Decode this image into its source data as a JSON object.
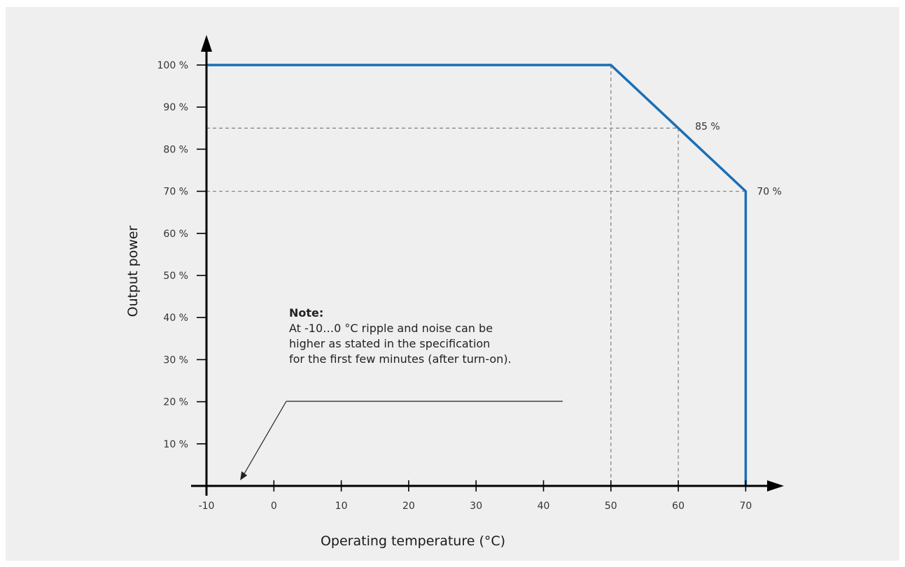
{
  "chart_data": {
    "type": "line",
    "xlabel": "Operating temperature (°C)",
    "ylabel": "Output power",
    "xlim": [
      -10,
      70
    ],
    "ylim": [
      0,
      100
    ],
    "x_ticks": [
      -10,
      0,
      10,
      20,
      30,
      40,
      50,
      60,
      70
    ],
    "x_tick_labels": [
      "-10",
      "0",
      "10",
      "20",
      "30",
      "40",
      "50",
      "60",
      "70"
    ],
    "y_ticks": [
      10,
      20,
      30,
      40,
      50,
      60,
      70,
      80,
      90,
      100
    ],
    "y_tick_labels": [
      "10 %",
      "20 %",
      "30 %",
      "40 %",
      "50 %",
      "60 %",
      "70 %",
      "80 %",
      "90 %",
      "100 %"
    ],
    "grid": false,
    "series": [
      {
        "x": [
          -10,
          50,
          60,
          70,
          70
        ],
        "y": [
          100,
          100,
          85,
          70,
          0
        ],
        "color": "#1a6fb5"
      }
    ],
    "reference_lines": [
      {
        "from": [
          50,
          100
        ],
        "to": [
          50,
          0
        ]
      },
      {
        "from": [
          -10,
          85
        ],
        "to": [
          60,
          85
        ]
      },
      {
        "from": [
          60,
          85
        ],
        "to": [
          60,
          0
        ]
      },
      {
        "from": [
          -10,
          70
        ],
        "to": [
          70,
          70
        ]
      }
    ],
    "annotations": [
      {
        "text": "85 %",
        "x": 60,
        "y": 85
      },
      {
        "text": "70 %",
        "x": 70,
        "y": 70
      }
    ],
    "note": {
      "heading": "Note:",
      "lines": [
        "At -10…0 °C ripple and noise can be",
        "higher as stated in the specification",
        "for the first few minutes (after turn-on)."
      ],
      "points_to": [
        -5,
        0
      ]
    }
  },
  "colors": {
    "background": "#efefef",
    "line": "#1a6fb5",
    "axis": "#000000",
    "reference": "#888888"
  }
}
